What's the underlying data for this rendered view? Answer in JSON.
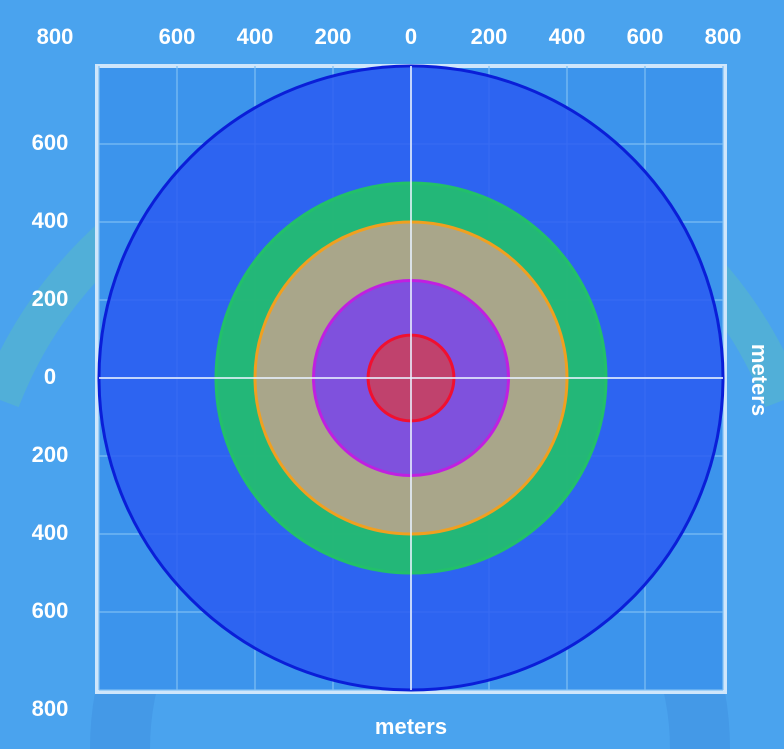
{
  "chart_data": {
    "type": "rings",
    "x_label": "meters",
    "y_label": "meters",
    "xlim": [
      -800,
      800
    ],
    "ylim": [
      -800,
      800
    ],
    "xticks": [
      {
        "value": -800,
        "label": "800"
      },
      {
        "value": -600,
        "label": "600"
      },
      {
        "value": -400,
        "label": "400"
      },
      {
        "value": -200,
        "label": "200"
      },
      0,
      200,
      400,
      600,
      800
    ],
    "yticks": [
      600,
      400,
      200,
      0,
      {
        "value": -200,
        "label": "200"
      },
      {
        "value": -400,
        "label": "400"
      },
      {
        "value": -600,
        "label": "600"
      },
      {
        "value": -800,
        "label": "800"
      }
    ],
    "grid": true,
    "values": [
      800,
      500,
      400,
      250,
      110
    ],
    "colors": [
      "#2a5cf2",
      "#22c06a",
      "#b8a48c",
      "#7a48e6",
      "#c84060"
    ],
    "edge_colors": [
      "#0a1ed8",
      "#22c06a",
      "#f0a020",
      "#c020e0",
      "#f01030"
    ]
  }
}
